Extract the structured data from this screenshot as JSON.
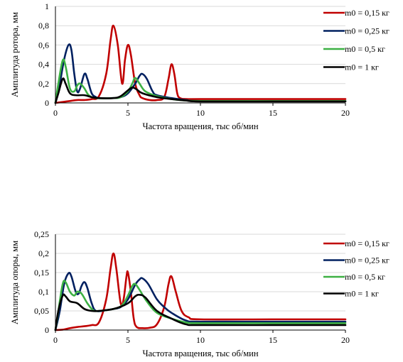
{
  "chart_data": [
    {
      "type": "line",
      "title": "",
      "xlabel": "Частота вращения, тыс об/мин",
      "ylabel": "Амплитуда ротора, мм",
      "xlim": [
        0,
        20
      ],
      "ylim": [
        0,
        1
      ],
      "xticks": [
        0,
        5,
        10,
        15,
        20
      ],
      "yticks": [
        0,
        0.2,
        0.4,
        0.6,
        0.8,
        1
      ],
      "ytick_labels": [
        "0",
        "0,2",
        "0,4",
        "0,6",
        "0,8",
        "1"
      ],
      "grid": "horizontal",
      "legend_position": "right",
      "series": [
        {
          "name": "m0 = 0,15 кг",
          "color": "#c00000",
          "points": [
            [
              0,
              0
            ],
            [
              0.5,
              0.01
            ],
            [
              1,
              0.02
            ],
            [
              1.5,
              0.03
            ],
            [
              2,
              0.03
            ],
            [
              2.5,
              0.04
            ],
            [
              3,
              0.07
            ],
            [
              3.5,
              0.3
            ],
            [
              3.8,
              0.65
            ],
            [
              4,
              0.8
            ],
            [
              4.3,
              0.6
            ],
            [
              4.6,
              0.2
            ],
            [
              4.8,
              0.45
            ],
            [
              5,
              0.6
            ],
            [
              5.2,
              0.5
            ],
            [
              5.5,
              0.2
            ],
            [
              5.8,
              0.08
            ],
            [
              6,
              0.05
            ],
            [
              6.5,
              0.03
            ],
            [
              7,
              0.03
            ],
            [
              7.5,
              0.06
            ],
            [
              7.8,
              0.25
            ],
            [
              8,
              0.4
            ],
            [
              8.2,
              0.3
            ],
            [
              8.4,
              0.1
            ],
            [
              8.6,
              0.05
            ],
            [
              9,
              0.04
            ],
            [
              10,
              0.04
            ],
            [
              15,
              0.04
            ],
            [
              20,
              0.04
            ]
          ]
        },
        {
          "name": "m0 = 0,25 кг",
          "color": "#002060",
          "points": [
            [
              0,
              0
            ],
            [
              0.3,
              0.2
            ],
            [
              0.6,
              0.45
            ],
            [
              0.9,
              0.6
            ],
            [
              1.1,
              0.55
            ],
            [
              1.3,
              0.3
            ],
            [
              1.5,
              0.12
            ],
            [
              1.7,
              0.15
            ],
            [
              2,
              0.3
            ],
            [
              2.2,
              0.25
            ],
            [
              2.5,
              0.1
            ],
            [
              2.8,
              0.06
            ],
            [
              3,
              0.05
            ],
            [
              4,
              0.05
            ],
            [
              4.5,
              0.06
            ],
            [
              5,
              0.1
            ],
            [
              5.5,
              0.2
            ],
            [
              5.8,
              0.28
            ],
            [
              6,
              0.3
            ],
            [
              6.3,
              0.25
            ],
            [
              6.7,
              0.12
            ],
            [
              7,
              0.08
            ],
            [
              8,
              0.05
            ],
            [
              9,
              0.03
            ],
            [
              10,
              0.02
            ],
            [
              15,
              0.02
            ],
            [
              20,
              0.02
            ]
          ]
        },
        {
          "name": "m0 = 0,5 кг",
          "color": "#3cb043",
          "points": [
            [
              0,
              0
            ],
            [
              0.2,
              0.2
            ],
            [
              0.5,
              0.44
            ],
            [
              0.7,
              0.38
            ],
            [
              1,
              0.15
            ],
            [
              1.3,
              0.12
            ],
            [
              1.5,
              0.18
            ],
            [
              1.7,
              0.2
            ],
            [
              2,
              0.15
            ],
            [
              2.3,
              0.08
            ],
            [
              2.8,
              0.05
            ],
            [
              4,
              0.05
            ],
            [
              4.5,
              0.06
            ],
            [
              5,
              0.12
            ],
            [
              5.3,
              0.2
            ],
            [
              5.5,
              0.26
            ],
            [
              5.8,
              0.2
            ],
            [
              6.2,
              0.12
            ],
            [
              7,
              0.07
            ],
            [
              8,
              0.04
            ],
            [
              9,
              0.025
            ],
            [
              10,
              0.02
            ],
            [
              15,
              0.02
            ],
            [
              20,
              0.02
            ]
          ]
        },
        {
          "name": "m0 = 1 кг",
          "color": "#000000",
          "points": [
            [
              0,
              0
            ],
            [
              0.2,
              0.1
            ],
            [
              0.5,
              0.25
            ],
            [
              0.7,
              0.2
            ],
            [
              1,
              0.1
            ],
            [
              1.4,
              0.08
            ],
            [
              2,
              0.08
            ],
            [
              2.5,
              0.06
            ],
            [
              3,
              0.05
            ],
            [
              4,
              0.05
            ],
            [
              4.5,
              0.07
            ],
            [
              5,
              0.13
            ],
            [
              5.3,
              0.16
            ],
            [
              5.6,
              0.14
            ],
            [
              6,
              0.1
            ],
            [
              7,
              0.06
            ],
            [
              8,
              0.04
            ],
            [
              9,
              0.025
            ],
            [
              10,
              0.015
            ],
            [
              15,
              0.015
            ],
            [
              20,
              0.015
            ]
          ]
        }
      ]
    },
    {
      "type": "line",
      "title": "",
      "xlabel": "Частота вращения, тыс об/мин",
      "ylabel": "Амплитуда опоры, мм",
      "xlim": [
        0,
        20
      ],
      "ylim": [
        0,
        0.25
      ],
      "xticks": [
        0,
        5,
        10,
        15,
        20
      ],
      "yticks": [
        0,
        0.05,
        0.1,
        0.15,
        0.2,
        0.25
      ],
      "ytick_labels": [
        "0",
        "0,05",
        "0,1",
        "0,15",
        "0,2",
        "0,25"
      ],
      "grid": "horizontal",
      "legend_position": "right",
      "series": [
        {
          "name": "m0 = 0,15 кг",
          "color": "#c00000",
          "points": [
            [
              0,
              0
            ],
            [
              0.5,
              0.001
            ],
            [
              1,
              0.005
            ],
            [
              1.5,
              0.008
            ],
            [
              2,
              0.01
            ],
            [
              2.5,
              0.013
            ],
            [
              3,
              0.02
            ],
            [
              3.5,
              0.08
            ],
            [
              3.8,
              0.16
            ],
            [
              4,
              0.2
            ],
            [
              4.2,
              0.16
            ],
            [
              4.5,
              0.07
            ],
            [
              4.7,
              0.08
            ],
            [
              4.9,
              0.14
            ],
            [
              5,
              0.15
            ],
            [
              5.2,
              0.1
            ],
            [
              5.4,
              0.03
            ],
            [
              5.6,
              0.008
            ],
            [
              6,
              0.005
            ],
            [
              6.5,
              0.006
            ],
            [
              7,
              0.015
            ],
            [
              7.5,
              0.06
            ],
            [
              7.8,
              0.12
            ],
            [
              8,
              0.14
            ],
            [
              8.3,
              0.1
            ],
            [
              8.7,
              0.05
            ],
            [
              9.2,
              0.033
            ],
            [
              10,
              0.028
            ],
            [
              15,
              0.028
            ],
            [
              20,
              0.028
            ]
          ]
        },
        {
          "name": "m0 = 0,25 кг",
          "color": "#002060",
          "points": [
            [
              0,
              0
            ],
            [
              0.3,
              0.05
            ],
            [
              0.6,
              0.12
            ],
            [
              0.9,
              0.148
            ],
            [
              1.1,
              0.14
            ],
            [
              1.4,
              0.1
            ],
            [
              1.6,
              0.095
            ],
            [
              1.8,
              0.115
            ],
            [
              2,
              0.125
            ],
            [
              2.2,
              0.11
            ],
            [
              2.5,
              0.07
            ],
            [
              2.8,
              0.05
            ],
            [
              3.5,
              0.052
            ],
            [
              4,
              0.055
            ],
            [
              4.5,
              0.06
            ],
            [
              5,
              0.08
            ],
            [
              5.5,
              0.118
            ],
            [
              5.8,
              0.132
            ],
            [
              6,
              0.135
            ],
            [
              6.4,
              0.12
            ],
            [
              7,
              0.08
            ],
            [
              7.5,
              0.06
            ],
            [
              8,
              0.045
            ],
            [
              9,
              0.025
            ],
            [
              10,
              0.022
            ],
            [
              15,
              0.022
            ],
            [
              20,
              0.022
            ]
          ]
        },
        {
          "name": "m0 = 0,5 кг",
          "color": "#3cb043",
          "points": [
            [
              0,
              0
            ],
            [
              0.2,
              0.05
            ],
            [
              0.5,
              0.12
            ],
            [
              0.7,
              0.125
            ],
            [
              1,
              0.1
            ],
            [
              1.3,
              0.09
            ],
            [
              1.5,
              0.1
            ],
            [
              1.8,
              0.095
            ],
            [
              2.2,
              0.07
            ],
            [
              2.6,
              0.052
            ],
            [
              3,
              0.05
            ],
            [
              4,
              0.055
            ],
            [
              4.6,
              0.065
            ],
            [
              5,
              0.09
            ],
            [
              5.3,
              0.115
            ],
            [
              5.5,
              0.12
            ],
            [
              5.8,
              0.105
            ],
            [
              6.3,
              0.075
            ],
            [
              7,
              0.045
            ],
            [
              8,
              0.03
            ],
            [
              9,
              0.02
            ],
            [
              10,
              0.018
            ],
            [
              15,
              0.018
            ],
            [
              20,
              0.018
            ]
          ]
        },
        {
          "name": "m0 = 1 кг",
          "color": "#000000",
          "points": [
            [
              0,
              0
            ],
            [
              0.2,
              0.05
            ],
            [
              0.5,
              0.09
            ],
            [
              0.7,
              0.088
            ],
            [
              1,
              0.075
            ],
            [
              1.5,
              0.07
            ],
            [
              2,
              0.055
            ],
            [
              2.5,
              0.05
            ],
            [
              3,
              0.05
            ],
            [
              4,
              0.055
            ],
            [
              5,
              0.07
            ],
            [
              5.5,
              0.088
            ],
            [
              5.8,
              0.092
            ],
            [
              6.2,
              0.085
            ],
            [
              7,
              0.05
            ],
            [
              8,
              0.03
            ],
            [
              9,
              0.015
            ],
            [
              10,
              0.013
            ],
            [
              15,
              0.013
            ],
            [
              20,
              0.013
            ]
          ]
        }
      ]
    }
  ]
}
